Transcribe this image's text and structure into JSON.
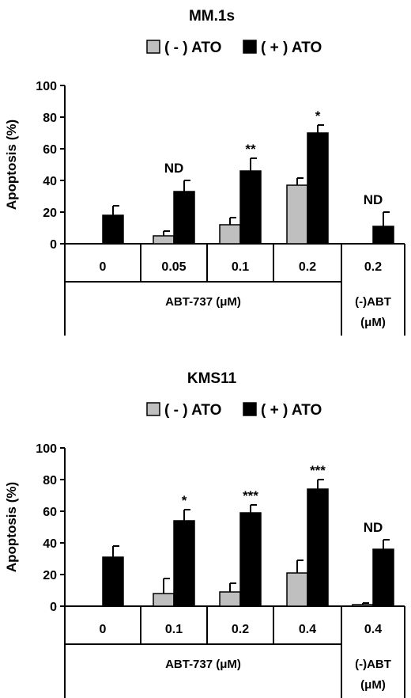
{
  "chart_data": [
    {
      "type": "bar",
      "title": "MM.1s",
      "ylabel": "Apoptosis (%)",
      "ylim": [
        0,
        100
      ],
      "yticks": [
        "0",
        "20",
        "40",
        "60",
        "80",
        "100"
      ],
      "categories": [
        "0",
        "0.05",
        "0.1",
        "0.2",
        "0.2"
      ],
      "group_labels": [
        "ABT-737 (μM)",
        "(-)ABT",
        "(μM)"
      ],
      "legend_position": "top",
      "series": [
        {
          "name": "( - ) ATO",
          "color": "#bfbfbf",
          "values": [
            null,
            5,
            12,
            37,
            null
          ],
          "errors": [
            null,
            3,
            4.5,
            4.5,
            null
          ]
        },
        {
          "name": "( + ) ATO",
          "color": "#000000",
          "values": [
            18,
            33,
            46,
            70,
            11
          ],
          "errors": [
            6,
            7,
            8,
            5,
            9
          ]
        }
      ],
      "annotations": [
        "",
        "ND",
        "**",
        "*",
        "ND"
      ]
    },
    {
      "type": "bar",
      "title": "KMS11",
      "ylabel": "Apoptosis (%)",
      "ylim": [
        0,
        100
      ],
      "yticks": [
        "0",
        "20",
        "40",
        "60",
        "80",
        "100"
      ],
      "categories": [
        "0",
        "0.1",
        "0.2",
        "0.4",
        "0.4"
      ],
      "group_labels": [
        "ABT-737 (μM)",
        "(-)ABT",
        "(μM)"
      ],
      "legend_position": "top",
      "series": [
        {
          "name": "( - ) ATO",
          "color": "#bfbfbf",
          "values": [
            null,
            8,
            9,
            21,
            1
          ],
          "errors": [
            null,
            9.5,
            5.5,
            8,
            1
          ]
        },
        {
          "name": "( + ) ATO",
          "color": "#000000",
          "values": [
            31,
            54,
            59,
            74,
            36
          ],
          "errors": [
            7,
            7,
            5,
            6,
            6
          ]
        }
      ],
      "annotations": [
        "",
        "*",
        "***",
        "***",
        "ND"
      ]
    }
  ]
}
